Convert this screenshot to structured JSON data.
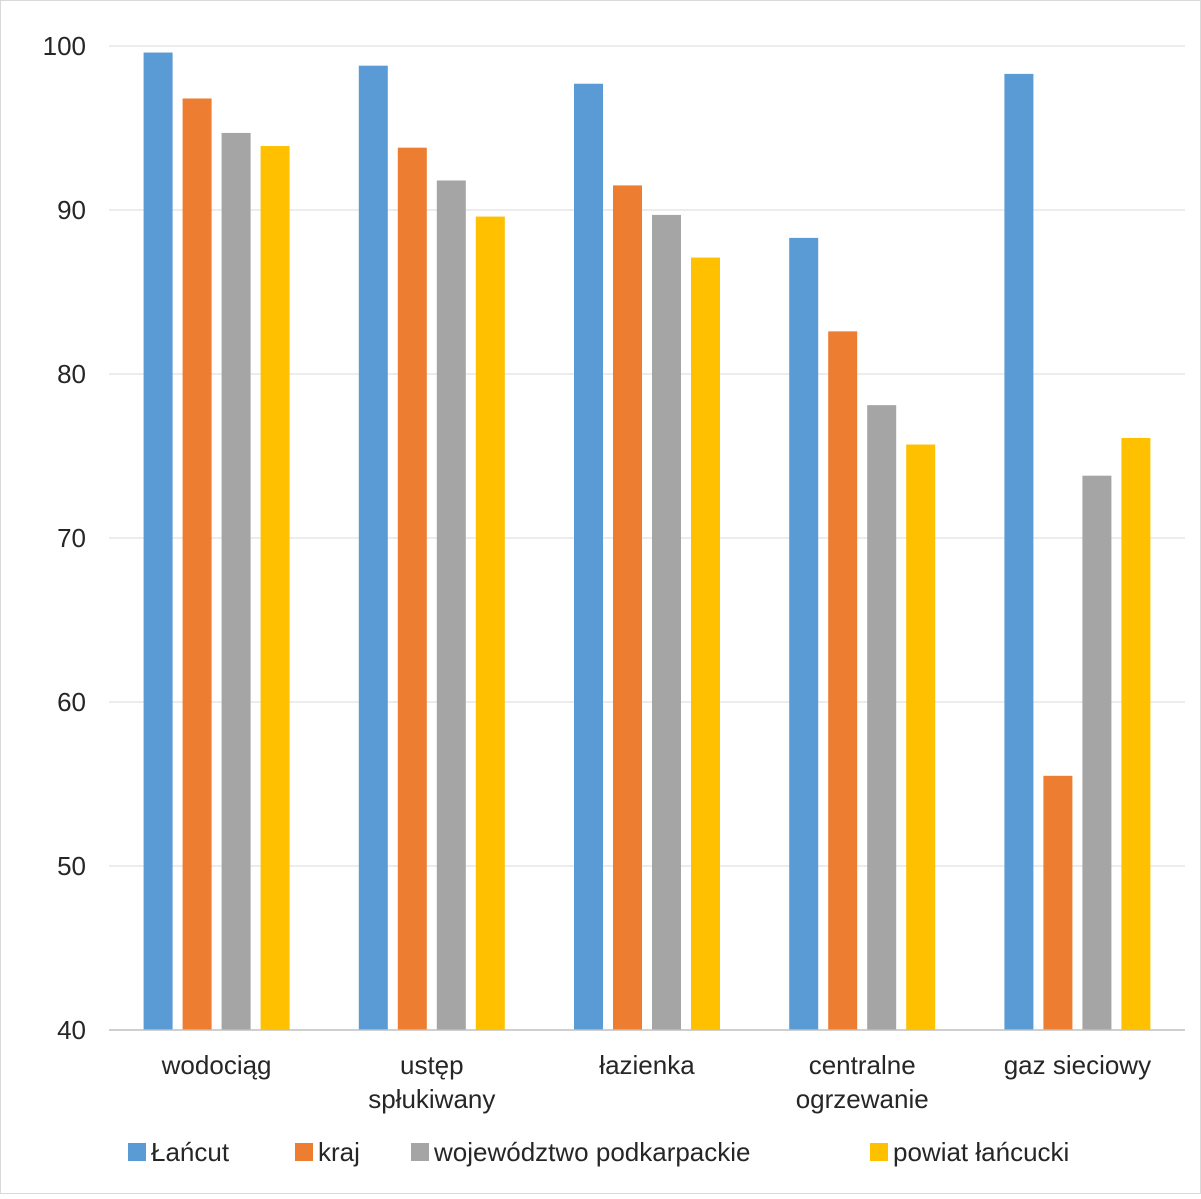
{
  "chart_data": {
    "type": "bar",
    "title": "",
    "xlabel": "",
    "ylabel": "",
    "ylim": [
      40,
      100
    ],
    "y_ticks": [
      40,
      50,
      60,
      70,
      80,
      90,
      100
    ],
    "grid": true,
    "legend_position": "bottom",
    "categories": [
      [
        "wodociąg"
      ],
      [
        "ustęp",
        "spłukiwany"
      ],
      [
        "łazienka"
      ],
      [
        "centralne",
        "ogrzewanie"
      ],
      [
        "gaz sieciowy"
      ]
    ],
    "series": [
      {
        "name": "Łańcut",
        "color": "#5B9BD5",
        "values": [
          99.6,
          98.8,
          97.7,
          88.3,
          98.3
        ]
      },
      {
        "name": "kraj",
        "color": "#ED7D31",
        "values": [
          96.8,
          93.8,
          91.5,
          82.6,
          55.5
        ]
      },
      {
        "name": "województwo podkarpackie",
        "color": "#A5A5A5",
        "values": [
          94.7,
          91.8,
          89.7,
          78.1,
          73.8
        ]
      },
      {
        "name": "powiat łańcucki",
        "color": "#FFC000",
        "values": [
          93.9,
          89.6,
          87.1,
          75.7,
          76.1
        ]
      }
    ]
  }
}
